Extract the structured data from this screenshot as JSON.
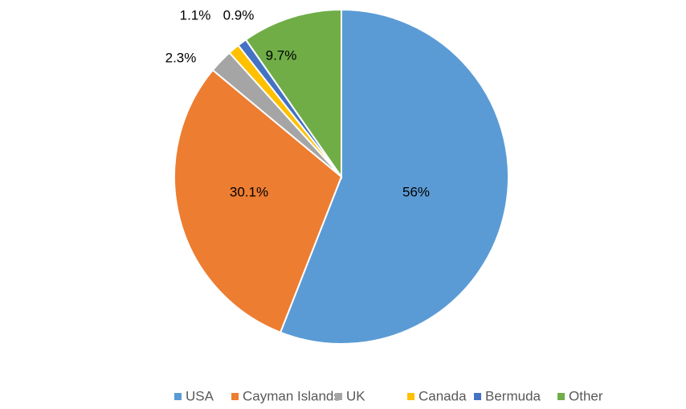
{
  "chart_data": {
    "type": "pie",
    "categories": [
      "USA",
      "Cayman Islands",
      "UK",
      "Canada",
      "Bermuda",
      "Other"
    ],
    "values": [
      56,
      30.1,
      2.3,
      1.1,
      0.9,
      9.7
    ],
    "value_labels": [
      "56%",
      "30.1%",
      "2.3%",
      "1.1%",
      "0.9%",
      "9.7%"
    ],
    "colors": [
      "#5b9bd5",
      "#ed7d31",
      "#a5a5a5",
      "#ffc000",
      "#4472c4",
      "#70ad47"
    ],
    "legend": "bottom"
  }
}
